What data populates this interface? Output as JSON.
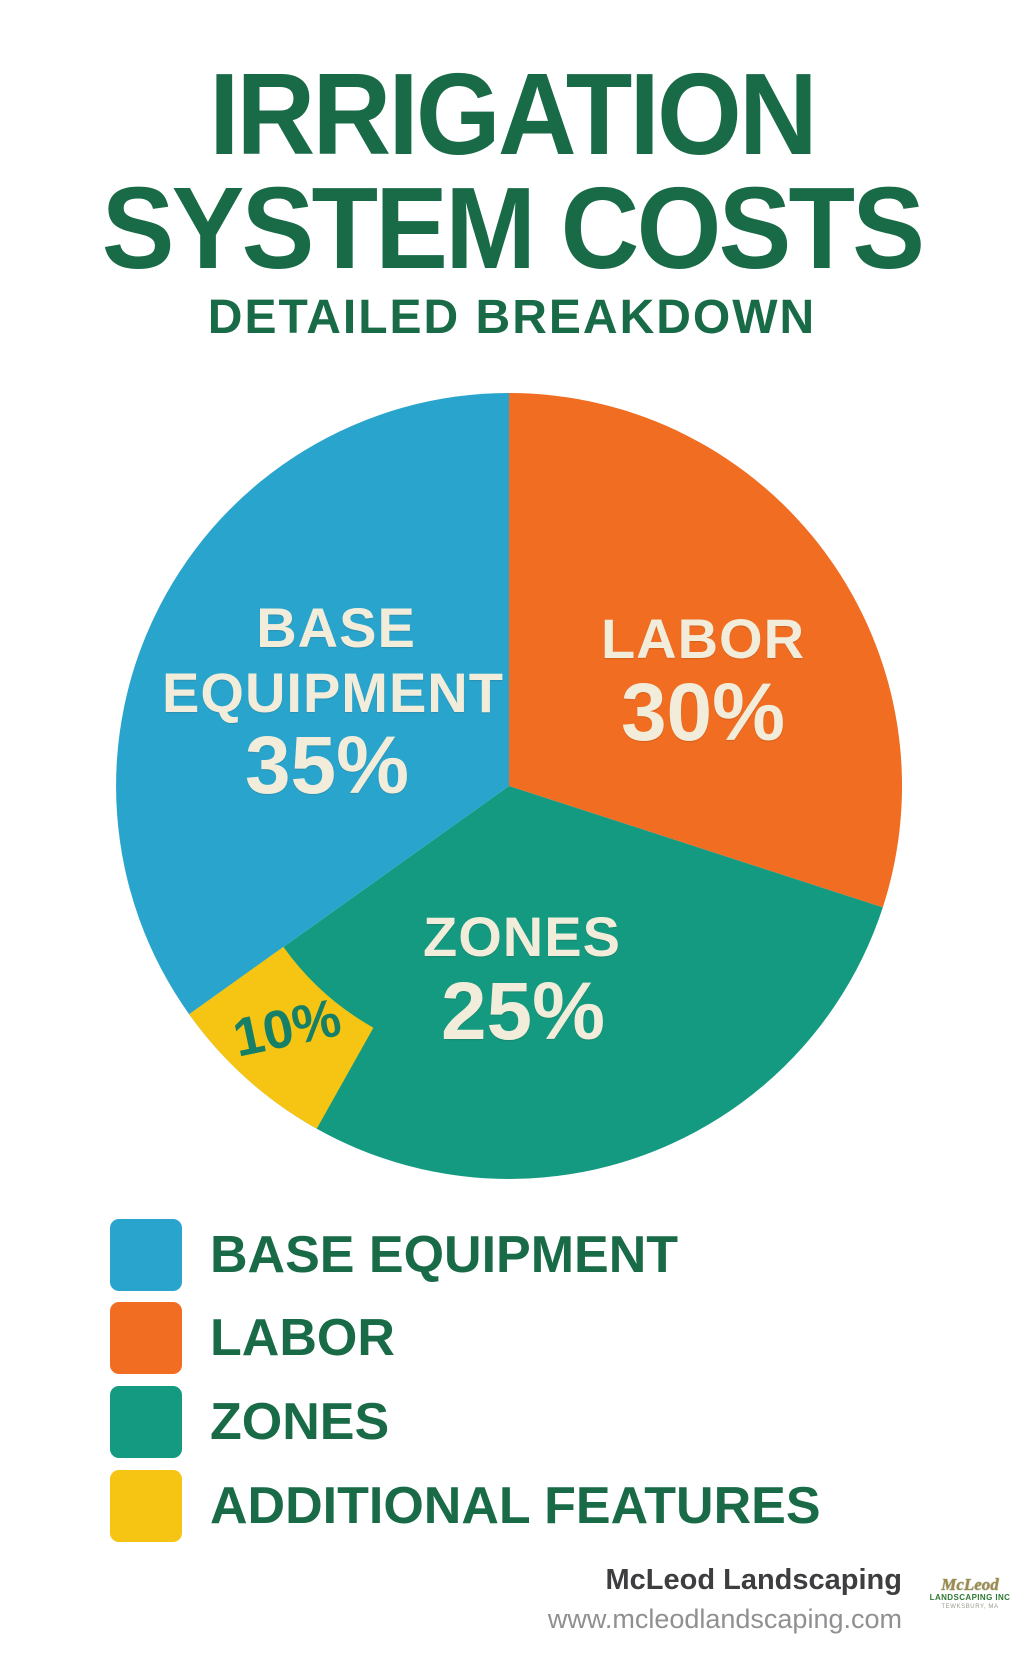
{
  "title": {
    "line1": "IRRIGATION",
    "line2": "SYSTEM COSTS",
    "subtitle": "DETAILED BREAKDOWN"
  },
  "chart_data": {
    "type": "pie",
    "title": "Irrigation System Costs — Detailed Breakdown",
    "slices": [
      {
        "name": "BASE EQUIPMENT",
        "value_pct": 35,
        "pct_label": "35%",
        "lines": [
          "BASE",
          "EQUIPMENT"
        ],
        "color": "#29a5cd",
        "label_color": "#f2edda"
      },
      {
        "name": "LABOR",
        "value_pct": 30,
        "pct_label": "30%",
        "lines": [
          "LABOR"
        ],
        "color": "#f06d22",
        "label_color": "#f2edda"
      },
      {
        "name": "ZONES",
        "value_pct": 25,
        "pct_label": "25%",
        "lines": [
          "ZONES"
        ],
        "color": "#149a80",
        "label_color": "#f2edda"
      },
      {
        "name": "ADDITIONAL FEATURES",
        "value_pct": 10,
        "pct_label": "10%",
        "lines": [],
        "color": "#f6c513",
        "label_color": "#157f68"
      }
    ],
    "layout": {
      "direction": "clockwise",
      "start_angle_deg": 0,
      "legend_position": "bottom-left",
      "radius_px": 393,
      "display_wedges": [
        {
          "slice": 1,
          "start_deg": 0,
          "end_deg": 108
        },
        {
          "slice": 2,
          "start_deg": 108,
          "end_deg": 234.5
        },
        {
          "slice": 0,
          "start_deg": 234.5,
          "end_deg": 360
        }
      ],
      "additional_features_display": {
        "slice": 3,
        "start_deg": 209.3,
        "end_deg": 234.5,
        "inner_radius_frac": 0.705
      }
    }
  },
  "legend": {
    "items": [
      {
        "label": "BASE EQUIPMENT",
        "color": "#29a5cd"
      },
      {
        "label": "LABOR",
        "color": "#f06d22"
      },
      {
        "label": "ZONES",
        "color": "#149a80"
      },
      {
        "label": "ADDITIONAL FEATURES",
        "color": "#f6c513"
      }
    ]
  },
  "footer": {
    "company": "McLeod Landscaping",
    "website": "www.mcleodlandscaping.com",
    "logo": {
      "name": "McLeod",
      "subtitle": "LANDSCAPING INC",
      "town": "TEWKSBURY, MA"
    }
  }
}
